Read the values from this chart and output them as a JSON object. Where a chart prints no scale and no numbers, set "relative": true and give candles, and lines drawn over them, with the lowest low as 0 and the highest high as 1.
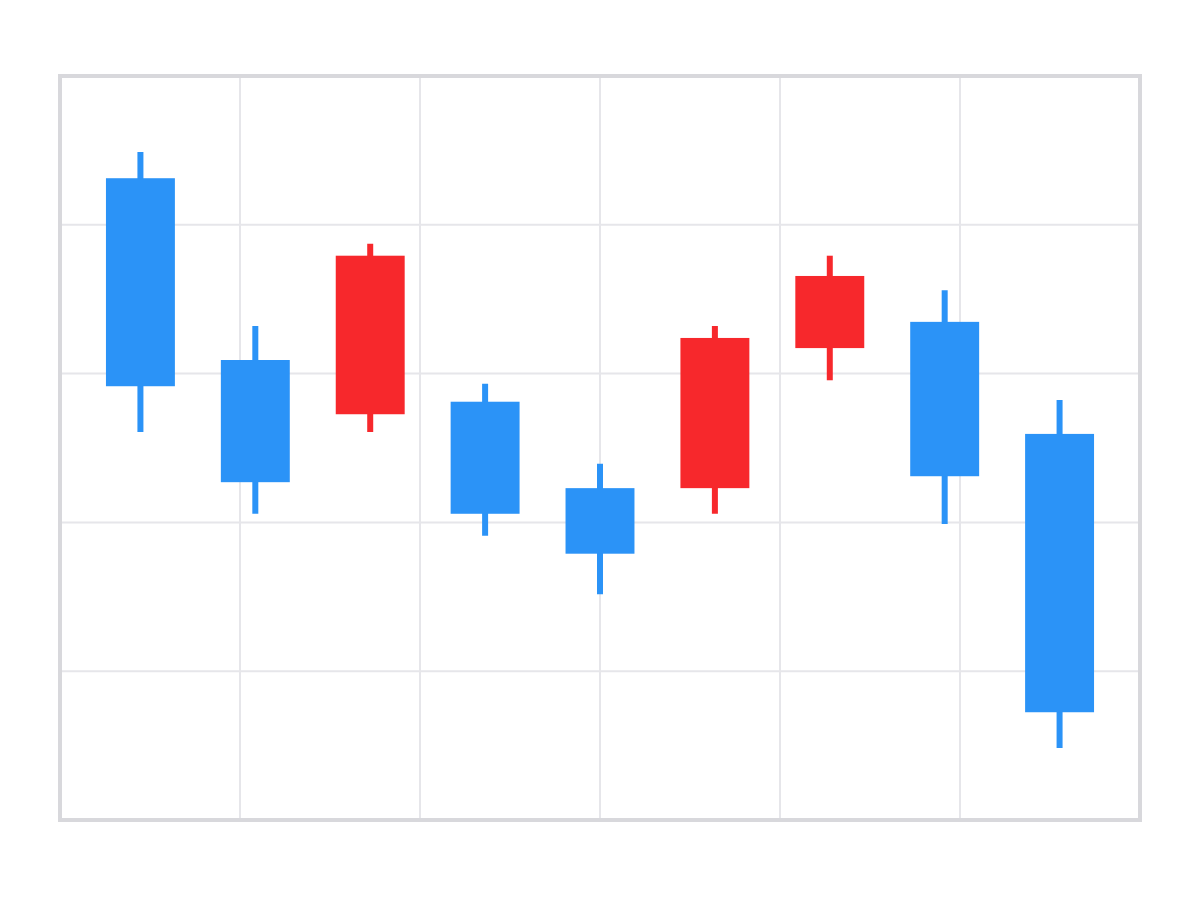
{
  "chart_data": {
    "type": "candlestick",
    "relative": true,
    "grid": true,
    "categories": [
      null,
      null,
      null,
      null,
      null,
      null,
      null,
      null,
      null
    ],
    "ohlc": [
      [
        0.956,
        1,
        0.53,
        0.607
      ],
      [
        0.651,
        0.708,
        0.393,
        0.446
      ],
      [
        0.56,
        0.846,
        0.53,
        0.826
      ],
      [
        0.581,
        0.611,
        0.356,
        0.393
      ],
      [
        0.436,
        0.477,
        0.258,
        0.326
      ],
      [
        0.436,
        0.708,
        0.393,
        0.688
      ],
      [
        0.671,
        0.826,
        0.617,
        0.792
      ],
      [
        0.715,
        0.768,
        0.376,
        0.456
      ],
      [
        0.527,
        0.584,
        0,
        0.06
      ]
    ],
    "colors": [
      "#2b93f7",
      "#2b93f7",
      "#f7282c",
      "#2b93f7",
      "#2b93f7",
      "#f7282c",
      "#f7282c",
      "#2b93f7",
      "#2b93f7"
    ]
  }
}
